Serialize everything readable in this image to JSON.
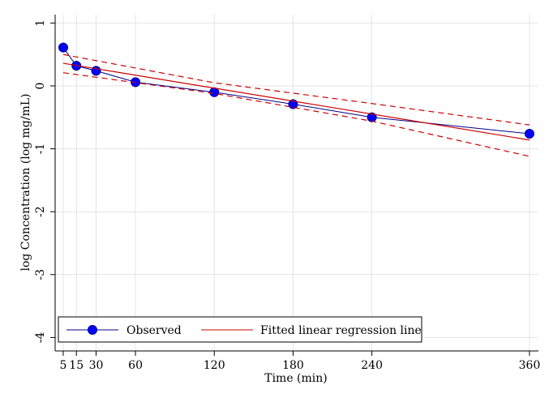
{
  "chart_data": {
    "type": "line",
    "xlabel": "Time (min)",
    "ylabel": "log Concentration (log mg/mL)",
    "xlim": [
      0,
      360
    ],
    "ylim": [
      -4,
      1
    ],
    "x_ticks": [
      5,
      15,
      30,
      60,
      120,
      180,
      240,
      360
    ],
    "y_ticks": [
      1,
      0,
      -1,
      -2,
      -3,
      -4
    ],
    "grid": true,
    "legend_position": "bottom-left",
    "series": [
      {
        "name": "Observed",
        "style": "line-with-markers",
        "color": "#0000ff",
        "x": [
          5,
          15,
          30,
          60,
          120,
          180,
          240,
          360
        ],
        "y": [
          0.61,
          0.32,
          0.24,
          0.06,
          -0.1,
          -0.29,
          -0.5,
          -0.76
        ]
      },
      {
        "name": "Fitted linear regression line",
        "style": "solid",
        "color": "#cc0000",
        "x": [
          5,
          360
        ],
        "y": [
          0.36,
          -0.86
        ]
      },
      {
        "style": "dashed",
        "color": "#cc0000",
        "x": [
          5,
          120,
          240,
          360
        ],
        "y": [
          0.5,
          0.05,
          -0.28,
          -0.62
        ]
      },
      {
        "style": "dashed",
        "color": "#cc0000",
        "x": [
          5,
          120,
          240,
          360
        ],
        "y": [
          0.21,
          -0.12,
          -0.56,
          -1.12
        ]
      }
    ]
  },
  "legend": {
    "observed_label": "Observed",
    "fitted_label": "Fitted linear regression line"
  }
}
